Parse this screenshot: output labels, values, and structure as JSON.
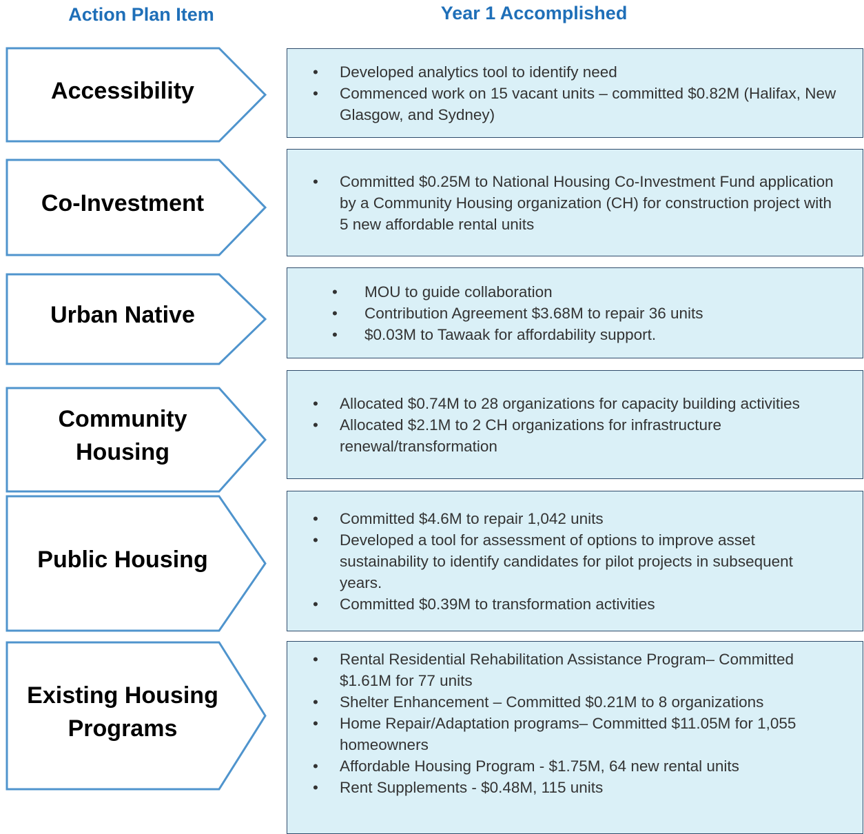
{
  "header": {
    "left": "Action Plan Item",
    "right": "Year 1 Accomplished"
  },
  "rows": [
    {
      "label": "Accessibility",
      "items": [
        "Developed analytics tool to identify need",
        "Commenced work on 15 vacant units – committed $0.82M (Halifax, New Glasgow, and Sydney)"
      ]
    },
    {
      "label": "Co-Investment",
      "items": [
        "Committed $0.25M to National Housing Co-Investment Fund application by a Community Housing organization (CH) for construction project with 5 new affordable rental units"
      ]
    },
    {
      "label": "Urban Native",
      "items": [
        "MOU to guide collaboration",
        "Contribution Agreement $3.68M to repair 36 units",
        "$0.03M to Tawaak for affordability support."
      ]
    },
    {
      "label": "Community Housing",
      "items": [
        "Allocated $0.74M to 28 organizations for capacity building activities",
        "Allocated $2.1M to 2 CH organizations for infrastructure renewal/transformation"
      ]
    },
    {
      "label": "Public Housing",
      "items": [
        "Committed $4.6M to repair 1,042 units",
        "Developed a tool for assessment of options to improve asset sustainability to identify candidates for pilot projects in subsequent years.",
        "Committed $0.39M to transformation activities"
      ]
    },
    {
      "label": "Existing Housing Programs",
      "items": [
        "Rental Residential Rehabilitation Assistance Program– Committed $1.61M for 77 units",
        "Shelter Enhancement – Committed $0.21M to 8 organizations",
        "Home Repair/Adaptation programs– Committed $11.05M for 1,055 homeowners",
        "Affordable Housing Program - $1.75M, 64 new rental units",
        "Rent Supplements - $0.48M, 115 units"
      ]
    }
  ]
}
